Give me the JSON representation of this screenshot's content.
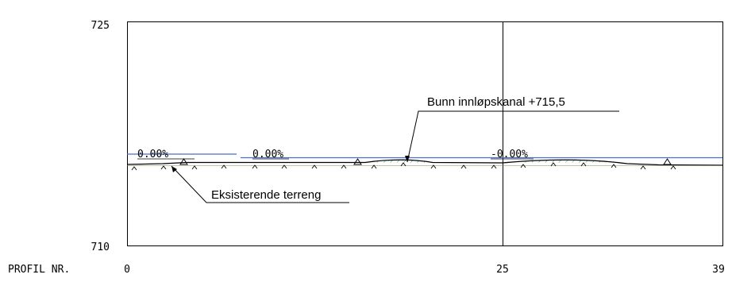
{
  "axis": {
    "y_top_label": "725",
    "y_bottom_label": "710",
    "row_label": "PROFIL NR.",
    "x_ticks": [
      "0",
      "25",
      "39"
    ]
  },
  "grades": [
    {
      "text": "0.00%"
    },
    {
      "text": "0.00%"
    },
    {
      "text": "-0.00%"
    }
  ],
  "annotations": {
    "inlet": "Bunn innløpskanal +715,5",
    "terrain": "Eksisterende terreng"
  },
  "colors": {
    "design_line": "#4a6fc8",
    "terrain_line": "#000000",
    "hatch": "#2e8b57",
    "frame": "#000000"
  },
  "chart_data": {
    "type": "line",
    "x_range": [
      0,
      39
    ],
    "y_range": [
      710,
      725
    ],
    "x_ticks": [
      0,
      25,
      39
    ],
    "y_ticks": [
      710,
      725
    ],
    "series": [
      {
        "x": [
          0,
          2.5,
          4.5,
          8,
          12,
          16,
          19,
          22,
          25,
          29,
          33,
          36,
          39
        ],
        "y": [
          714.53,
          714.58,
          714.85,
          714.85,
          714.85,
          714.85,
          715.05,
          714.85,
          714.83,
          715.03,
          714.95,
          714.65,
          714.6
        ]
      },
      {
        "x": [
          0,
          7.5
        ],
        "y": [
          715.5,
          715.5
        ]
      },
      {
        "x": [
          7.8,
          39
        ],
        "y": [
          715.2,
          715.2
        ]
      }
    ]
  }
}
